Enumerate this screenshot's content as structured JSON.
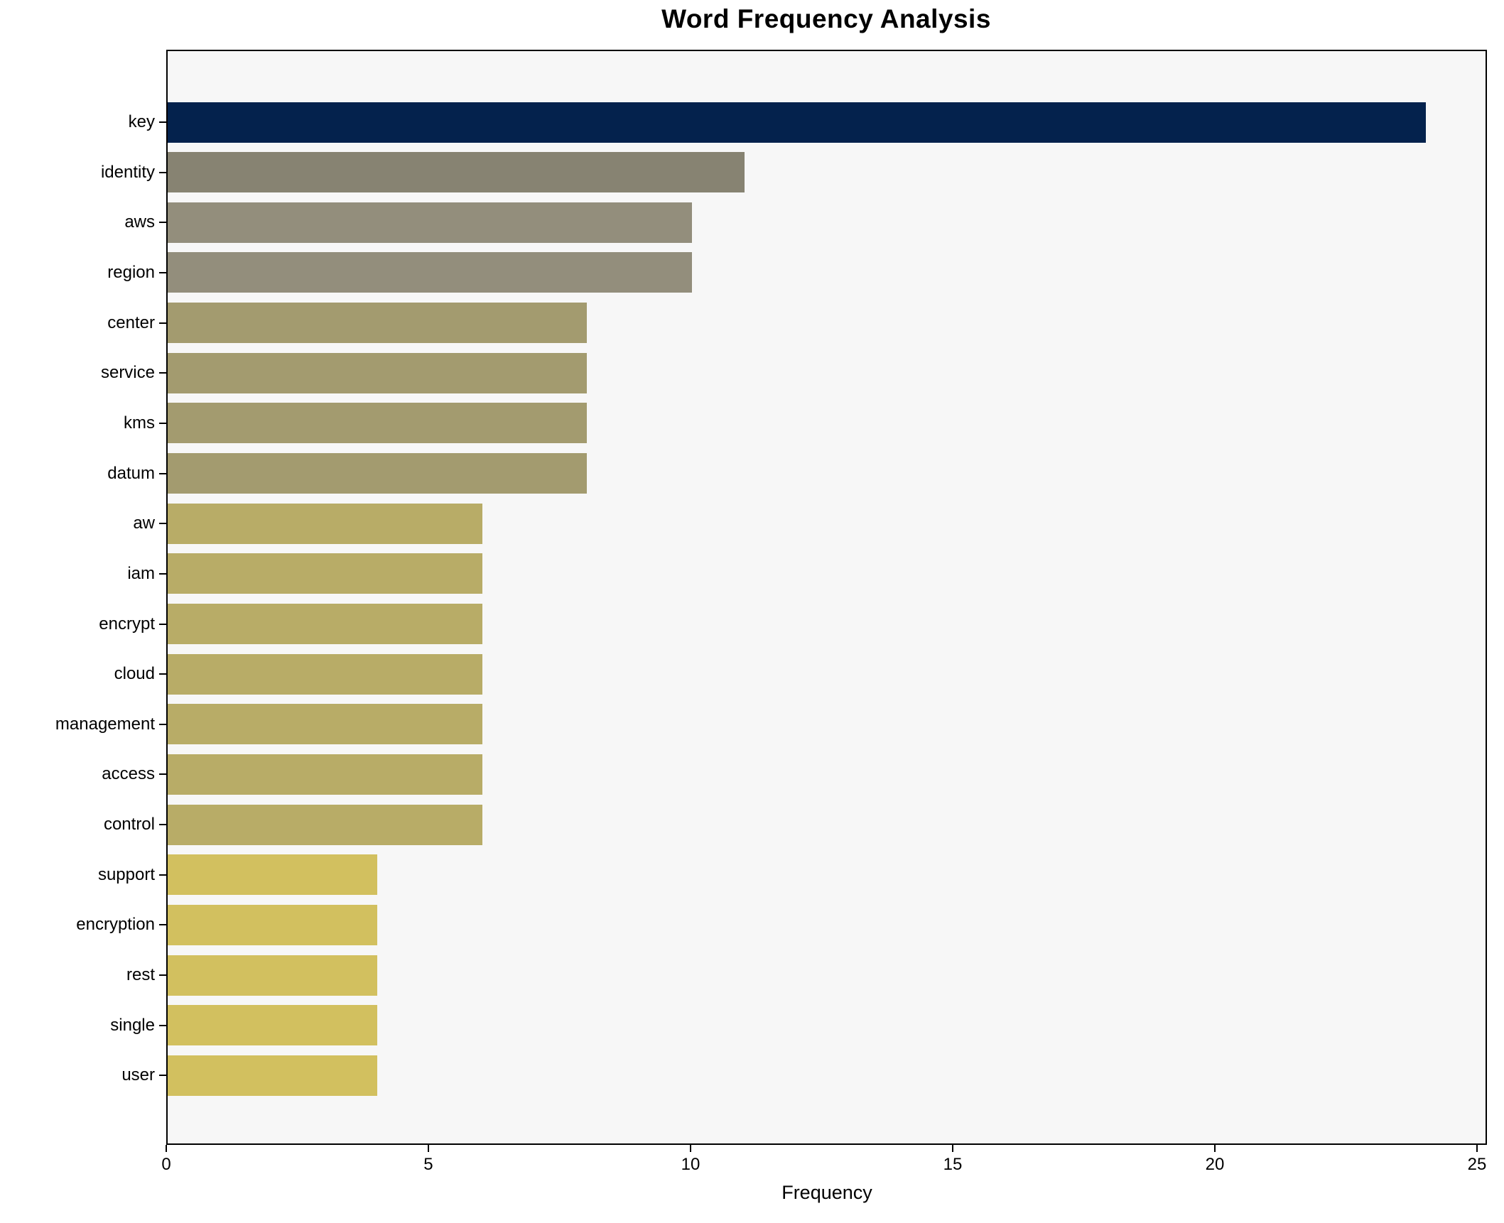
{
  "chart_data": {
    "type": "bar",
    "orientation": "horizontal",
    "title": "Word Frequency Analysis",
    "xlabel": "Frequency",
    "ylabel": "",
    "xlim": [
      0,
      25.19
    ],
    "x_ticks": [
      0,
      5,
      10,
      15,
      20,
      25
    ],
    "grid": false,
    "legend": false,
    "plot_background": "#f7f7f7",
    "spine_color": "#000000",
    "categories": [
      "key",
      "identity",
      "aws",
      "region",
      "center",
      "service",
      "kms",
      "datum",
      "aw",
      "iam",
      "encrypt",
      "cloud",
      "management",
      "access",
      "control",
      "support",
      "encryption",
      "rest",
      "single",
      "user"
    ],
    "values": [
      24,
      11,
      10,
      10,
      8,
      8,
      8,
      8,
      6,
      6,
      6,
      6,
      6,
      6,
      6,
      4,
      4,
      4,
      4,
      4
    ],
    "bar_colors": [
      "#04224d",
      "#878372",
      "#938e7c",
      "#938e7c",
      "#a39b6f",
      "#a39b6f",
      "#a39b6f",
      "#a39b6f",
      "#b8ac67",
      "#b8ac67",
      "#b8ac67",
      "#b8ac67",
      "#b8ac67",
      "#b8ac67",
      "#b8ac67",
      "#d2c05f",
      "#d2c05f",
      "#d2c05f",
      "#d2c05f",
      "#d2c05f"
    ]
  }
}
